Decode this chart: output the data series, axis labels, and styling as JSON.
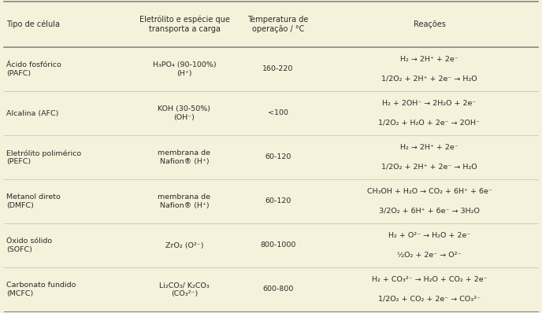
{
  "bg_color": "#f5f2dc",
  "col_headers": [
    "Tipo de célula",
    "Eletrólito e espécie que\ntransporta a carga",
    "Temperatura de\noperação / °C",
    "Reações"
  ],
  "rows": [
    {
      "col0": "Ácido fosfórico\n(PAFC)",
      "col1": "H₃PO₄ (90-100%)\n(H⁺)",
      "col2": "160-220",
      "col3_line1": "H₂ → 2H⁺ + 2e⁻",
      "col3_line2": "1/2O₂ + 2H⁺ + 2e⁻ → H₂O"
    },
    {
      "col0": "Alcalina (AFC)",
      "col1": "KOH (30-50%)\n(OH⁻)",
      "col2": "<100",
      "col3_line1": "H₂ + 2OH⁻ → 2H₂O + 2e⁻",
      "col3_line2": "1/2O₂ + H₂O + 2e⁻ → 2OH⁻"
    },
    {
      "col0": "Eletrólito polimérico\n(PEFC)",
      "col1": "membrana de\nNafion® (H⁺)",
      "col2": "60-120",
      "col3_line1": "H₂ → 2H⁺ + 2e⁻",
      "col3_line2": "1/2O₂ + 2H⁺ + 2e⁻ → H₂O"
    },
    {
      "col0": "Metanol direto\n(DMFC)",
      "col1": "membrana de\nNafion® (H⁺)",
      "col2": "60-120",
      "col3_line1": "CH₃OH + H₂O → CO₂ + 6H⁺ + 6e⁻",
      "col3_line2": "3/2O₂ + 6H⁺ + 6e⁻ → 3H₂O"
    },
    {
      "col0": "Óxido sólido\n(SOFC)",
      "col1": "ZrO₂ (O²⁻)",
      "col2": "800-1000",
      "col3_line1": "H₂ + O²⁻ → H₂O + 2e⁻",
      "col3_line2": "½O₂ + 2e⁻ → O²⁻"
    },
    {
      "col0": "Carbonato fundido\n(MCFC)",
      "col1": "Li₂CO₃/ K₂CO₃\n(CO₃²⁻)",
      "col2": "600-800",
      "col3_line1": "H₂ + CO₃²⁻ → H₂O + CO₂ + 2e⁻",
      "col3_line2": "1/2O₂ + CO₂ + 2e⁻ → CO₃²⁻"
    }
  ],
  "font_size": 6.8,
  "header_font_size": 7.0,
  "text_color": "#2a2a2a",
  "line_color": "#888880"
}
